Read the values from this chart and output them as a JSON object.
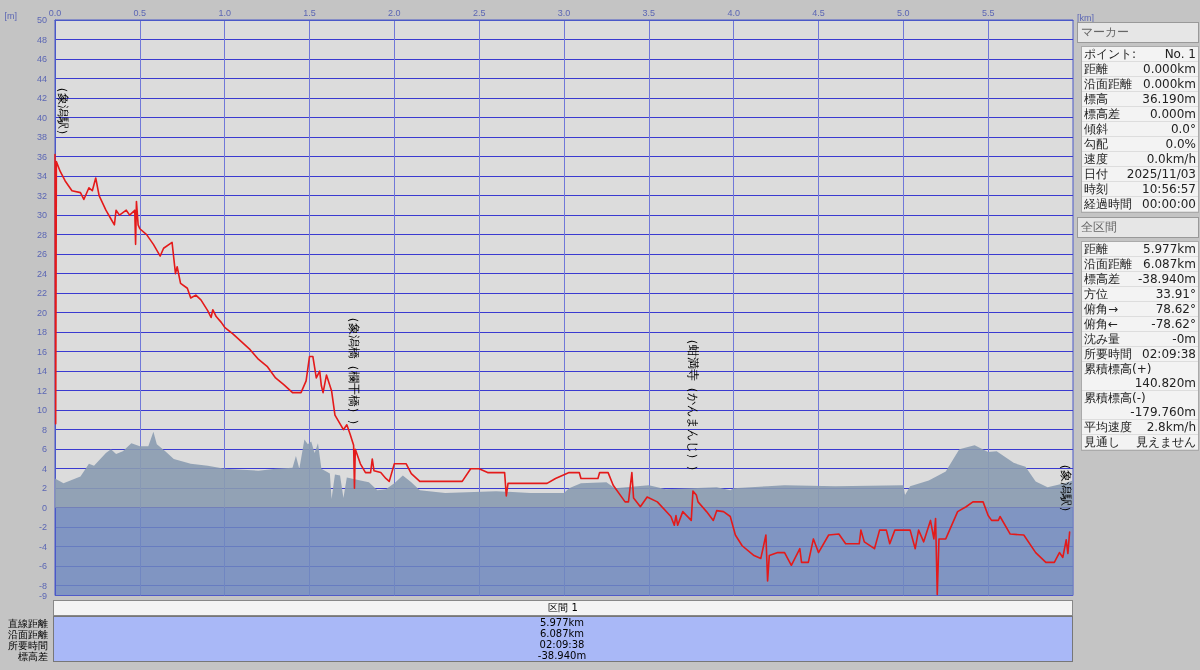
{
  "chart_data": [
    {
      "type": "line",
      "xlabel": "[km]",
      "ylabel": "[m]",
      "xlim": [
        0,
        6.0
      ],
      "xticks": [
        {
          "value": 0,
          "label": "0.0"
        },
        {
          "value": 0.5,
          "label": "0.5"
        },
        {
          "value": 1,
          "label": "1.0"
        },
        {
          "value": 1.5,
          "label": "1.5"
        },
        {
          "value": 2,
          "label": "2.0"
        },
        {
          "value": 2.5,
          "label": "2.5"
        },
        {
          "value": 3,
          "label": "3.0"
        },
        {
          "value": 3.5,
          "label": "3.5"
        },
        {
          "value": 4,
          "label": "4.0"
        },
        {
          "value": 4.5,
          "label": "4.5"
        },
        {
          "value": 5,
          "label": "5.0"
        },
        {
          "value": 5.5,
          "label": "5.5"
        }
      ],
      "ylim": [
        -9,
        50
      ],
      "yticks": [
        -9,
        -8,
        -6,
        -4,
        -2,
        0,
        2,
        4,
        6,
        8,
        10,
        12,
        14,
        16,
        18,
        20,
        22,
        24,
        26,
        28,
        30,
        32,
        34,
        36,
        38,
        40,
        42,
        44,
        46,
        48,
        50
      ],
      "grid": true,
      "marker": "none",
      "line_style": "solid",
      "bands": [
        {
          "axis": "y",
          "from": -9,
          "to": 0,
          "color": "#7088bd"
        }
      ],
      "series": [
        {
          "type": "area",
          "color": "#8a9bb0",
          "x": [
            0,
            0.05,
            0.15,
            0.2,
            0.23,
            0.3,
            0.33,
            0.36,
            0.4,
            0.45,
            0.5,
            0.55,
            0.58,
            0.6,
            0.65,
            0.7,
            0.8,
            0.9,
            1.0,
            1.2,
            1.3,
            1.4,
            1.42,
            1.44,
            1.47,
            1.49,
            1.51,
            1.53,
            1.55,
            1.57,
            1.62,
            1.63,
            1.65,
            1.68,
            1.7,
            1.72,
            1.8,
            1.85,
            1.9,
            1.95,
            2.0,
            2.05,
            2.1,
            2.15,
            2.3,
            2.6,
            2.8,
            3.0,
            3.03,
            3.1,
            3.25,
            3.3,
            3.5,
            3.6,
            3.9,
            3.98,
            4.0,
            4.2,
            4.3,
            4.6,
            5.0,
            5.01,
            5.04,
            5.15,
            5.25,
            5.33,
            5.42,
            5.5,
            5.55,
            5.65,
            5.72,
            5.78,
            5.85,
            5.95,
            6.0
          ],
          "values": [
            3.0,
            2.5,
            3.2,
            4.5,
            4.3,
            5.6,
            6.0,
            5.5,
            5.8,
            6.6,
            6.3,
            6.3,
            7.8,
            6.5,
            5.8,
            5.0,
            4.5,
            4.3,
            4.0,
            3.8,
            4.0,
            4.1,
            5.3,
            4.0,
            7.0,
            6.5,
            6.8,
            5.6,
            6.6,
            4.0,
            3.5,
            0.9,
            3.4,
            3.3,
            1.0,
            3.1,
            2.8,
            2.6,
            1.8,
            1.9,
            2.5,
            3.3,
            2.6,
            1.8,
            1.5,
            1.7,
            1.5,
            1.5,
            2.0,
            2.5,
            2.6,
            2.0,
            2.3,
            1.9,
            2.1,
            1.8,
            2.0,
            2.2,
            2.3,
            2.2,
            2.3,
            1.3,
            2.2,
            2.8,
            3.7,
            6.0,
            6.4,
            5.7,
            5.8,
            4.6,
            4.2,
            2.7,
            2.1,
            2.5,
            2.8
          ]
        },
        {
          "type": "line",
          "color": "#e41a1a",
          "x": [
            0,
            0.004,
            0.008,
            0.03,
            0.06,
            0.1,
            0.15,
            0.17,
            0.2,
            0.22,
            0.24,
            0.26,
            0.3,
            0.33,
            0.35,
            0.36,
            0.38,
            0.42,
            0.44,
            0.47,
            0.475,
            0.48,
            0.49,
            0.5,
            0.54,
            0.58,
            0.62,
            0.64,
            0.69,
            0.71,
            0.72,
            0.74,
            0.78,
            0.8,
            0.83,
            0.86,
            0.9,
            0.92,
            0.93,
            0.95,
            0.98,
            1.0,
            1.05,
            1.1,
            1.15,
            1.2,
            1.25,
            1.3,
            1.35,
            1.4,
            1.45,
            1.48,
            1.5,
            1.52,
            1.54,
            1.56,
            1.57,
            1.58,
            1.6,
            1.63,
            1.65,
            1.7,
            1.72,
            1.74,
            1.76,
            1.765,
            1.77,
            1.8,
            1.83,
            1.86,
            1.87,
            1.88,
            1.92,
            1.95,
            1.97,
            2.0,
            2.07,
            2.1,
            2.15,
            2.4,
            2.45,
            2.5,
            2.55,
            2.65,
            2.66,
            2.67,
            2.9,
            2.95,
            3.03,
            3.09,
            3.1,
            3.2,
            3.21,
            3.26,
            3.29,
            3.36,
            3.38,
            3.4,
            3.41,
            3.45,
            3.49,
            3.55,
            3.63,
            3.65,
            3.66,
            3.67,
            3.7,
            3.75,
            3.76,
            3.78,
            3.79,
            3.84,
            3.88,
            3.9,
            3.94,
            3.98,
            4.01,
            4.05,
            4.12,
            4.16,
            4.19,
            4.2,
            4.21,
            4.26,
            4.3,
            4.34,
            4.39,
            4.4,
            4.44,
            4.47,
            4.5,
            4.56,
            4.62,
            4.66,
            4.74,
            4.75,
            4.77,
            4.83,
            4.86,
            4.9,
            4.92,
            4.95,
            5.04,
            5.07,
            5.09,
            5.12,
            5.16,
            5.18,
            5.19,
            5.2,
            5.21,
            5.25,
            5.32,
            5.37,
            5.41,
            5.47,
            5.5,
            5.52,
            5.56,
            5.57,
            5.63,
            5.71,
            5.78,
            5.84,
            5.89,
            5.92,
            5.94,
            5.96,
            5.97,
            5.98
          ],
          "values": [
            36.2,
            8.6,
            35.5,
            34.5,
            33.5,
            32.5,
            32.3,
            31.6,
            32.8,
            32.5,
            33.8,
            32.0,
            30.5,
            29.6,
            29.0,
            30.5,
            30.0,
            30.5,
            30.0,
            30.5,
            27.0,
            31.4,
            29.0,
            28.6,
            28.0,
            27.0,
            25.8,
            26.6,
            27.2,
            24.0,
            24.7,
            23.0,
            22.5,
            21.5,
            21.8,
            21.3,
            20.2,
            19.5,
            20.3,
            19.6,
            19.0,
            18.5,
            17.8,
            17.0,
            16.2,
            15.2,
            14.5,
            13.3,
            12.6,
            11.8,
            11.8,
            13.0,
            15.5,
            15.5,
            13.3,
            14.0,
            12.5,
            11.8,
            13.6,
            12.0,
            9.5,
            8.0,
            8.5,
            7.5,
            6.4,
            2.0,
            6.0,
            4.5,
            3.6,
            3.6,
            5.0,
            3.8,
            3.6,
            3.0,
            2.7,
            4.5,
            4.5,
            3.5,
            2.7,
            2.7,
            4.0,
            4.0,
            3.6,
            3.6,
            1.2,
            2.5,
            2.5,
            3.0,
            3.6,
            3.6,
            3.0,
            3.0,
            3.6,
            3.6,
            2.3,
            0.6,
            0.6,
            3.6,
            1.0,
            0.1,
            1.1,
            0.6,
            -0.9,
            -1.8,
            -0.8,
            -1.8,
            -0.4,
            -1.3,
            1.7,
            1.3,
            0.6,
            -0.4,
            -1.3,
            -0.3,
            -0.4,
            -0.9,
            -2.8,
            -3.9,
            -4.9,
            -5.2,
            -2.8,
            -7.5,
            -4.9,
            -4.6,
            -4.6,
            -5.9,
            -4.2,
            -5.6,
            -5.6,
            -3.2,
            -4.6,
            -2.8,
            -2.7,
            -3.7,
            -3.7,
            -2.3,
            -3.5,
            -4.2,
            -2.3,
            -2.3,
            -3.7,
            -2.3,
            -2.3,
            -4.2,
            -2.3,
            -3.5,
            -1.3,
            -3.2,
            -1.1,
            -8.9,
            -3.2,
            -3.2,
            -0.4,
            0.1,
            0.6,
            0.6,
            -0.8,
            -1.3,
            -1.3,
            -0.9,
            -2.7,
            -2.8,
            -4.6,
            -5.6,
            -5.6,
            -4.6,
            -5.1,
            -3.3,
            -4.7,
            -2.5
          ]
        }
      ],
      "annotations": [
        {
          "text": "（象潟駅）",
          "x": 0,
          "y": 36.2
        },
        {
          "text": "（象潟橋（欄干橋））",
          "x": 1.76,
          "y": 6.4
        },
        {
          "text": "（蚶満寺（かんまんじ））",
          "x": 3.76,
          "y": 1.7
        },
        {
          "text": "（象潟駅）",
          "x": 5.98,
          "y": -2.5
        }
      ]
    },
    {
      "type": "other",
      "title": "マーカー",
      "annotations": [
        "ポイント: No. 1",
        "距離 0.000km",
        "沿面距離 0.000km",
        "標高 36.190m",
        "標高差 0.000m",
        "傾斜 0.0°",
        "勾配 0.0%",
        "速度 0.0km/h",
        "日付 2025/11/03",
        "時刻 10:56:57",
        "経過時間 00:00:00"
      ]
    },
    {
      "type": "other",
      "title": "全区間",
      "annotations": [
        "距離 5.977km",
        "沿面距離 6.087km",
        "標高差 -38.940m",
        "方位 33.91°",
        "俯角→ 78.62°",
        "俯角← -78.62°",
        "沈み量 -0m",
        "所要時間 02:09:38",
        "累積標高(+) 140.820m",
        "累積標高(-) -179.760m",
        "平均速度 2.8km/h",
        "見通し 見えません"
      ]
    },
    {
      "type": "other",
      "title": "区間 1",
      "annotations": [
        "直線距離 5.977km",
        "沿面距離 6.087km",
        "所要時間 02:09:38",
        "標高差 -38.940m"
      ]
    }
  ]
}
